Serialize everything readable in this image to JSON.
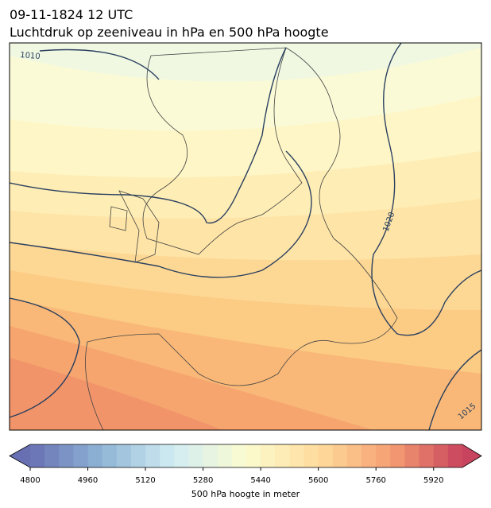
{
  "title": {
    "line1": "09-11-1824 12 UTC",
    "line2": "Luchtdruk op zeeniveau in hPa en 500 hPa hoogte"
  },
  "isobars": [
    {
      "label": "1010"
    },
    {
      "label": "1020"
    },
    {
      "label": "1015"
    }
  ],
  "colorbar": {
    "label": "500 hPa hoogte in meter",
    "range": [
      4800,
      6000
    ],
    "step": 40,
    "ticks": [
      4800,
      4960,
      5120,
      5280,
      5440,
      5600,
      5760,
      5920
    ],
    "colormap": [
      "#6870b3",
      "#8fb6d6",
      "#d2ecf2",
      "#fbfbcf",
      "#fedc9c",
      "#f59f72",
      "#c8435d"
    ]
  }
}
